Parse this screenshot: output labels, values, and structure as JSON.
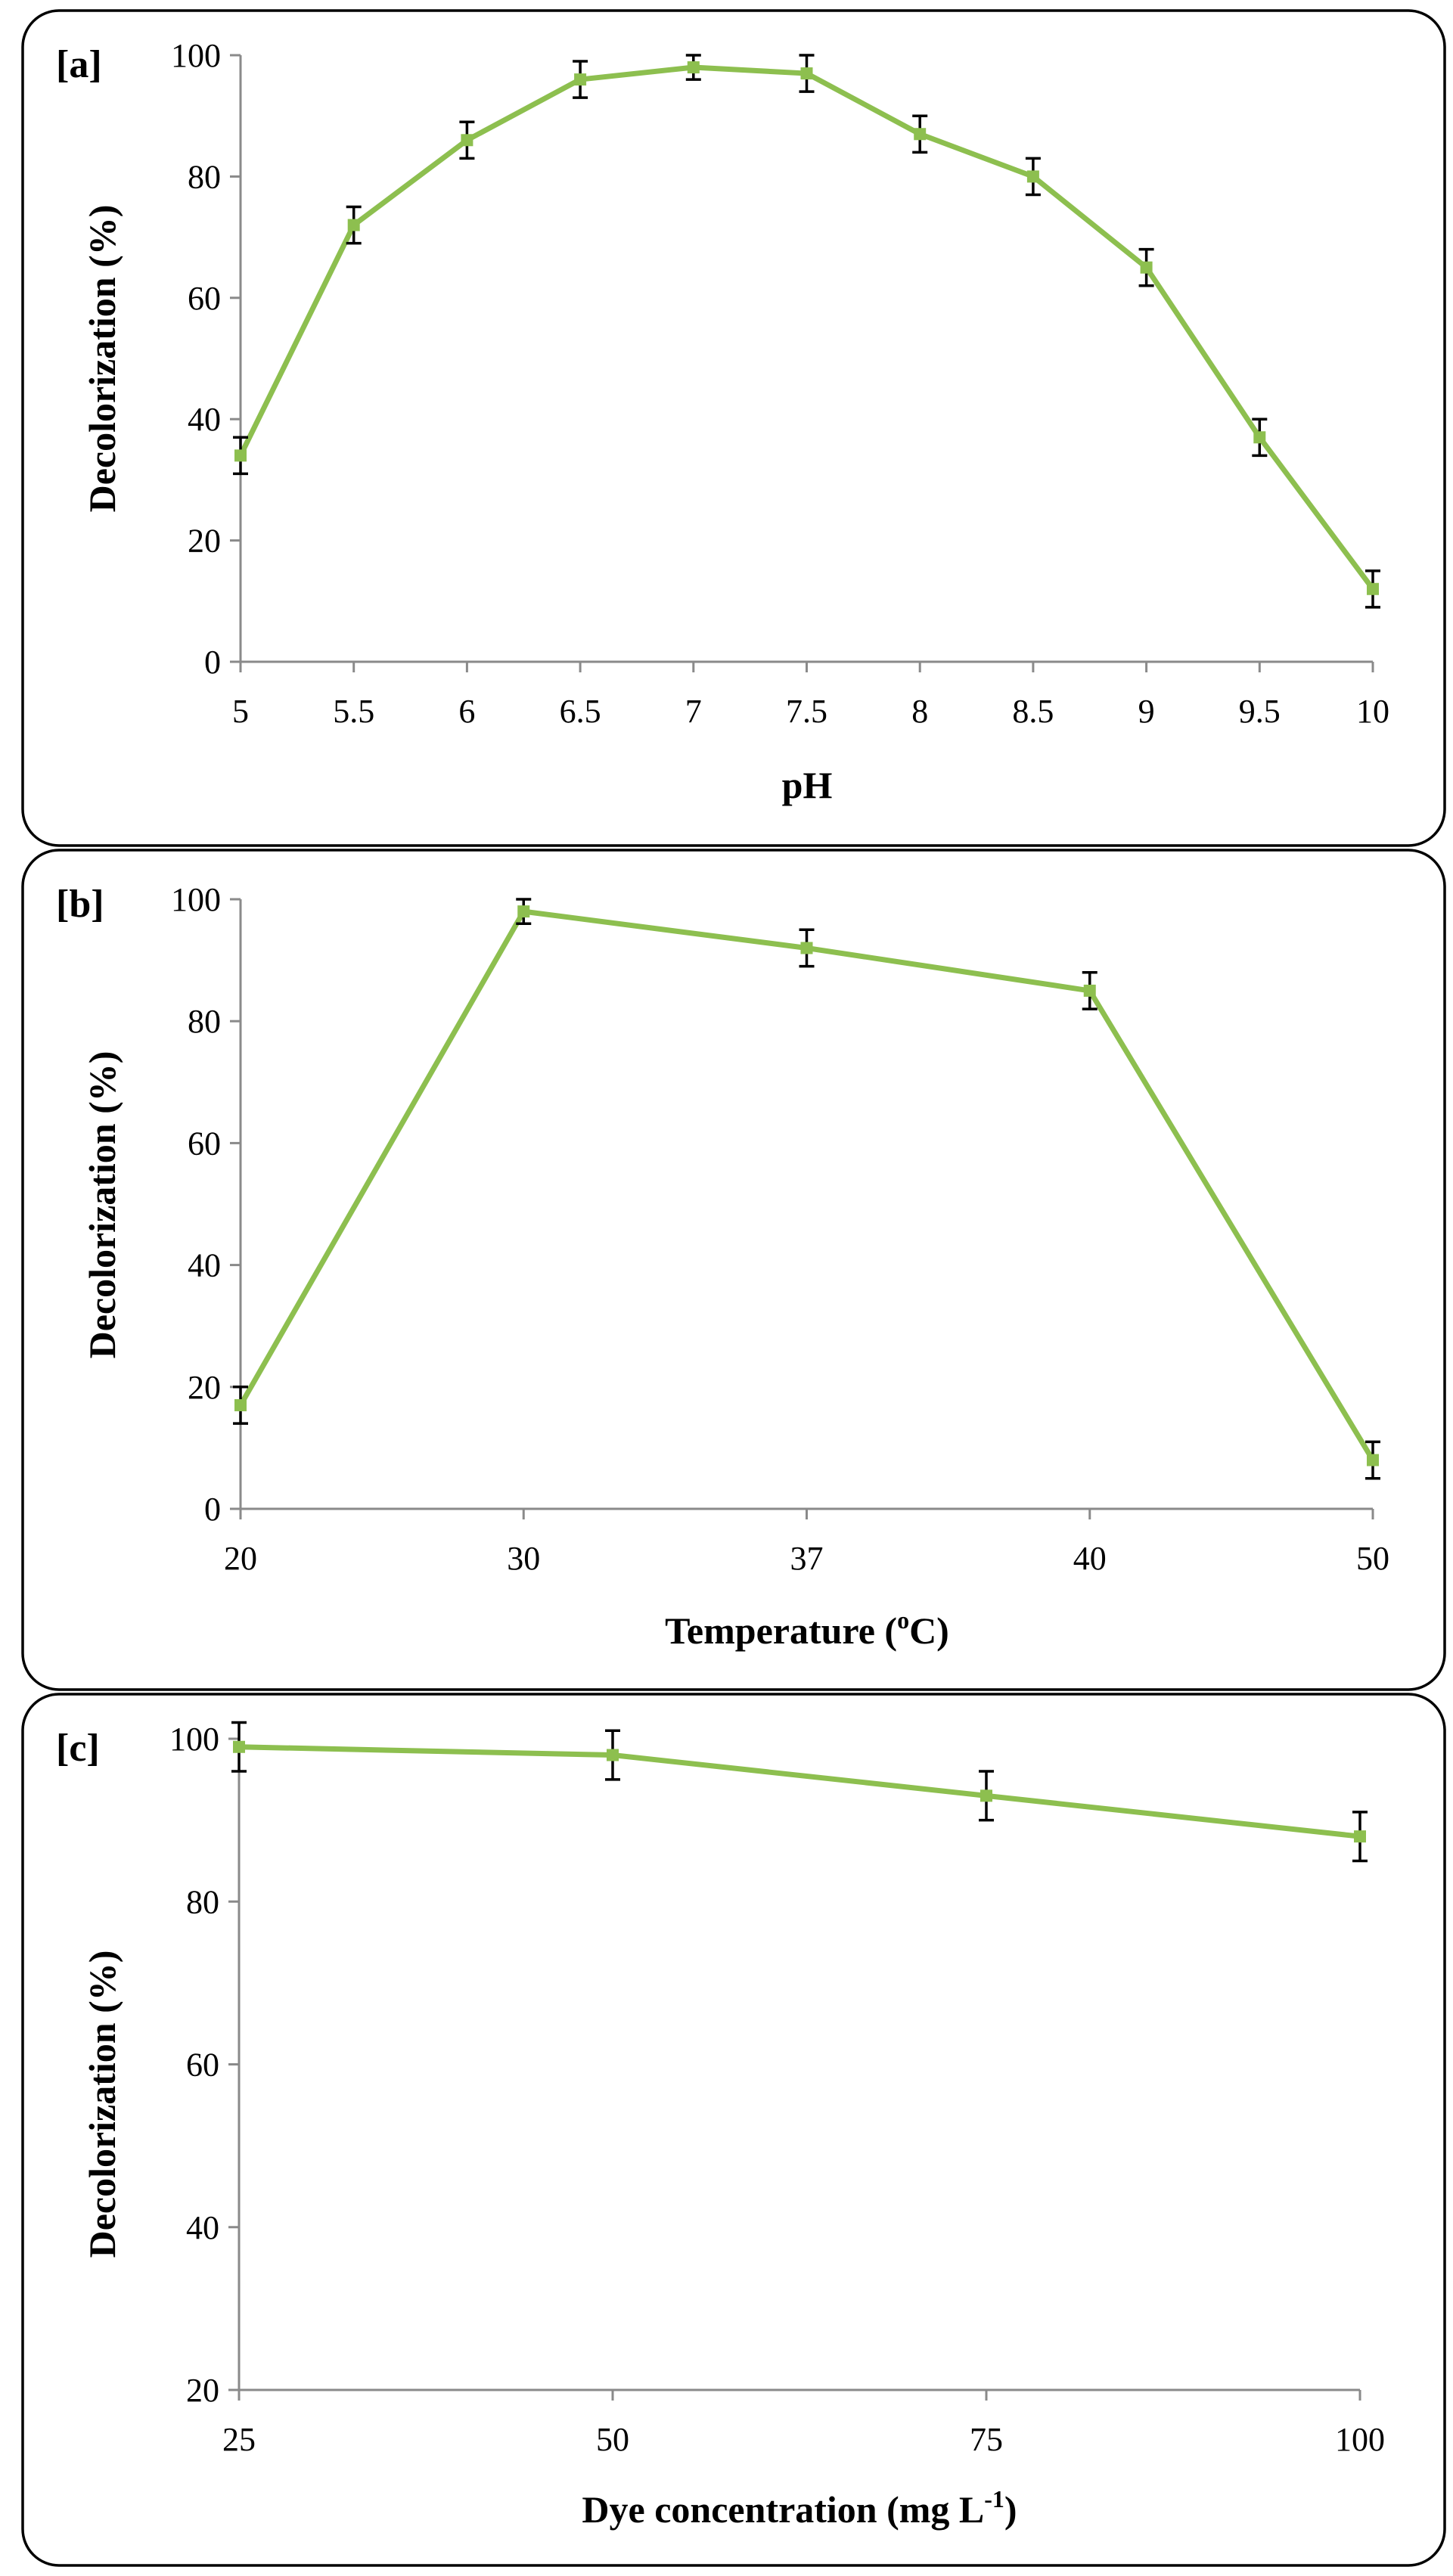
{
  "chart_data": [
    {
      "type": "line",
      "panel_label": "[a]",
      "title": "",
      "xlabel": "pH",
      "ylabel": "Decolorization (%)",
      "categories": [
        "5",
        "5.5",
        "6",
        "6.5",
        "7",
        "7.5",
        "8",
        "8.5",
        "9",
        "9.5",
        "10"
      ],
      "series": [
        {
          "name": "Decolorization",
          "values": [
            34,
            72,
            86,
            96,
            98,
            97,
            87,
            80,
            65,
            37,
            12
          ],
          "errors": [
            3,
            3,
            3,
            3,
            2,
            3,
            3,
            3,
            3,
            3,
            3
          ]
        }
      ],
      "ylim": [
        0,
        100
      ],
      "yticks": [
        "0",
        "20",
        "40",
        "60",
        "80",
        "100"
      ],
      "grid": false,
      "color": "#8dbf4f"
    },
    {
      "type": "line",
      "panel_label": "[b]",
      "title": "",
      "xlabel": "Temperature (",
      "xlabel_sup": "o",
      "xlabel_suffix": "C)",
      "ylabel": "Decolorization (%)",
      "categories": [
        "20",
        "30",
        "37",
        "40",
        "50"
      ],
      "series": [
        {
          "name": "Decolorization",
          "values": [
            17,
            98,
            92,
            85,
            8
          ],
          "errors": [
            3,
            2,
            3,
            3,
            3
          ]
        }
      ],
      "ylim": [
        0,
        100
      ],
      "yticks": [
        "0",
        "20",
        "40",
        "60",
        "80",
        "100"
      ],
      "grid": false,
      "color": "#8dbf4f"
    },
    {
      "type": "line",
      "panel_label": "[c]",
      "title": "",
      "xlabel": "Dye concentration (mg L",
      "xlabel_sup": "-1",
      "xlabel_suffix": ")",
      "ylabel": "Decolorization (%)",
      "categories": [
        "25",
        "50",
        "75",
        "100"
      ],
      "series": [
        {
          "name": "Decolorization",
          "values": [
            99,
            98,
            93,
            88
          ],
          "errors": [
            3,
            3,
            3,
            3
          ]
        }
      ],
      "ylim": [
        20,
        100
      ],
      "yticks": [
        "20",
        "40",
        "60",
        "80",
        "100"
      ],
      "grid": false,
      "color": "#8dbf4f"
    }
  ]
}
